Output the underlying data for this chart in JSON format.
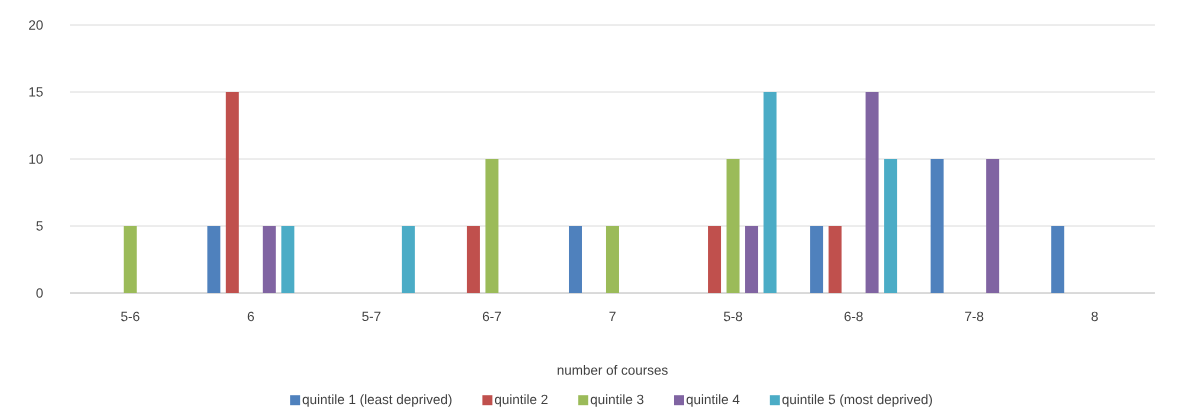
{
  "chart_data": {
    "type": "bar",
    "xlabel": "number of courses",
    "categories": [
      "5-6",
      "6",
      "5-7",
      "6-7",
      "7",
      "5-8",
      "6-8",
      "7-8",
      "8"
    ],
    "series": [
      {
        "name": "quintile 1 (least deprived)",
        "color": "#4f81bd",
        "values": [
          0,
          5,
          0,
          0,
          5,
          0,
          5,
          10,
          5
        ]
      },
      {
        "name": "quintile 2",
        "color": "#c0504d",
        "values": [
          0,
          15,
          0,
          5,
          0,
          5,
          5,
          0,
          0
        ]
      },
      {
        "name": "quintile 3",
        "color": "#9bbb59",
        "values": [
          5,
          0,
          0,
          10,
          5,
          10,
          0,
          0,
          0
        ]
      },
      {
        "name": "quintile 4",
        "color": "#8064a2",
        "values": [
          0,
          5,
          0,
          0,
          0,
          5,
          15,
          10,
          0
        ]
      },
      {
        "name": "quintile 5 (most deprived)",
        "color": "#4bacc6",
        "values": [
          0,
          5,
          5,
          0,
          0,
          15,
          10,
          0,
          0
        ]
      }
    ],
    "ylim": [
      0,
      20
    ],
    "yticks": [
      0,
      5,
      10,
      15,
      20
    ],
    "grid": "y",
    "legend": "bottom"
  }
}
